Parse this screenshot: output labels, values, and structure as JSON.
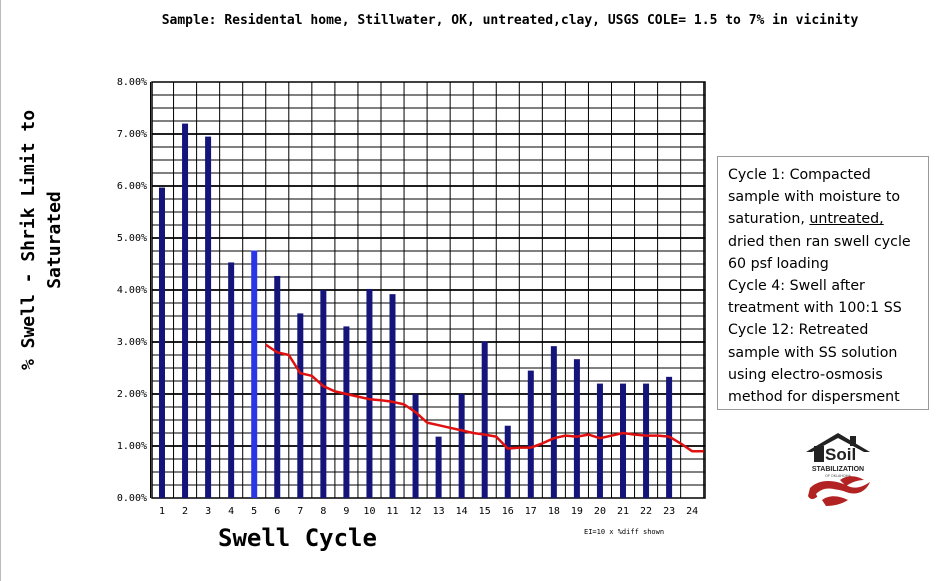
{
  "chart_data": {
    "type": "bar",
    "title": "Sample: Residental home, Stillwater, OK, untreated,clay, USGS COLE= 1.5 to 7% in vicinity",
    "xlabel": "Swell Cycle",
    "ylabel": "% Swell - Shrik Limit to Saturated",
    "ylim": [
      0,
      8
    ],
    "y_tick_labels": [
      "0.00%",
      "1.00%",
      "2.00%",
      "3.00%",
      "4.00%",
      "5.00%",
      "6.00%",
      "7.00%",
      "8.00%"
    ],
    "categories": [
      "1",
      "2",
      "3",
      "4",
      "5",
      "6",
      "7",
      "8",
      "9",
      "10",
      "11",
      "12",
      "13",
      "14",
      "15",
      "16",
      "17",
      "18",
      "19",
      "20",
      "21",
      "22",
      "23",
      "24"
    ],
    "series": [
      {
        "type": "bar",
        "values": [
          5.97,
          7.2,
          6.95,
          4.53,
          4.76,
          4.27,
          3.55,
          4.0,
          3.3,
          4.02,
          3.92,
          2.0,
          1.18,
          2.0,
          3.01,
          1.39,
          2.45,
          2.92,
          2.67,
          2.2,
          2.2,
          2.2,
          2.33,
          null
        ],
        "color": "#14147a",
        "highlight_color": "#2a36e8",
        "highlight_index": 4
      },
      {
        "type": "line",
        "x": [
          5.5,
          6,
          6.5,
          7,
          7.5,
          8,
          8.5,
          9,
          9.5,
          10,
          10.5,
          11,
          11.5,
          12,
          12.5,
          13,
          13.5,
          14,
          14.5,
          15,
          15.5,
          16,
          16.5,
          17,
          17.5,
          18,
          18.5,
          19,
          19.5,
          20,
          20.5,
          21,
          21.5,
          22,
          22.5,
          23,
          23.5,
          24,
          24.5
        ],
        "values": [
          2.95,
          2.8,
          2.75,
          2.4,
          2.35,
          2.15,
          2.05,
          2.0,
          1.95,
          1.9,
          1.88,
          1.85,
          1.8,
          1.65,
          1.45,
          1.4,
          1.35,
          1.3,
          1.25,
          1.22,
          1.18,
          0.95,
          0.97,
          0.97,
          1.05,
          1.15,
          1.2,
          1.18,
          1.22,
          1.15,
          1.2,
          1.25,
          1.22,
          1.2,
          1.2,
          1.18,
          1.05,
          0.9,
          0.9
        ],
        "color": "#e01010"
      }
    ],
    "grid": true,
    "annotation": "EI=10 x %diff shown"
  },
  "info_box": {
    "line1": "Cycle 1: Compacted sample with  moisture to saturation, ",
    "line1_underlined": "untreated,",
    "line2": " dried then ran swell cycle 60 psf loading",
    "line3": "Cycle 4: Swell after treatment with 100:1 SS",
    "line4": "Cycle 12: Retreated sample with SS solution using electro-osmosis method for dispersment"
  },
  "logo": {
    "text_top": "Soil",
    "text_mid": "STABILIZATION",
    "text_small": "OF OKLAHOMA",
    "icon": "house-logo-icon"
  }
}
